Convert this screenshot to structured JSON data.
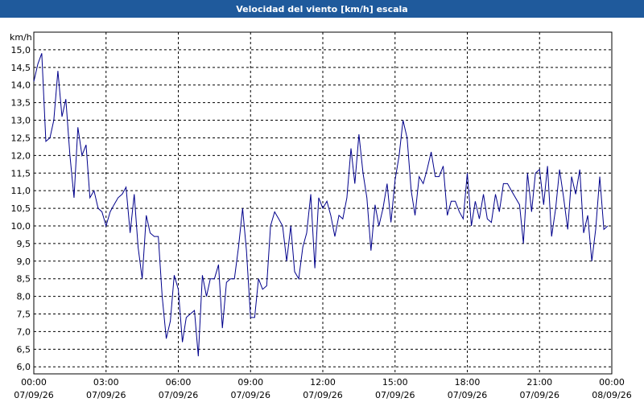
{
  "chart_data": {
    "type": "line",
    "title": "Velocidad del viento [km/h] escala",
    "y_label": "km/h",
    "x": [
      0,
      0.17,
      0.33,
      0.5,
      0.67,
      0.83,
      1,
      1.17,
      1.33,
      1.5,
      1.67,
      1.83,
      2,
      2.17,
      2.33,
      2.5,
      2.67,
      2.83,
      3,
      3.17,
      3.33,
      3.5,
      3.67,
      3.83,
      4,
      4.17,
      4.33,
      4.5,
      4.67,
      4.83,
      5,
      5.17,
      5.33,
      5.5,
      5.67,
      5.83,
      6,
      6.17,
      6.33,
      6.5,
      6.67,
      6.83,
      7,
      7.17,
      7.33,
      7.5,
      7.67,
      7.83,
      8,
      8.17,
      8.33,
      8.5,
      8.67,
      8.83,
      9,
      9.17,
      9.33,
      9.5,
      9.67,
      9.83,
      10,
      10.17,
      10.33,
      10.5,
      10.67,
      10.83,
      11,
      11.17,
      11.33,
      11.5,
      11.67,
      11.83,
      12,
      12.17,
      12.33,
      12.5,
      12.67,
      12.83,
      13,
      13.17,
      13.33,
      13.5,
      13.67,
      13.83,
      14,
      14.17,
      14.33,
      14.5,
      14.67,
      14.83,
      15,
      15.17,
      15.33,
      15.5,
      15.67,
      15.83,
      16,
      16.17,
      16.33,
      16.5,
      16.67,
      16.83,
      17,
      17.17,
      17.33,
      17.5,
      17.67,
      17.83,
      18,
      18.17,
      18.33,
      18.5,
      18.67,
      18.83,
      19,
      19.17,
      19.33,
      19.5,
      19.67,
      19.83,
      20,
      20.17,
      20.33,
      20.5,
      20.67,
      20.83,
      21,
      21.17,
      21.33,
      21.5,
      21.67,
      21.83,
      22,
      22.17,
      22.33,
      22.5,
      22.67,
      22.83,
      23,
      23.17,
      23.33,
      23.5,
      23.67,
      23.83
    ],
    "series": [
      {
        "name": "Velocidad del viento",
        "color": "#00008b",
        "values": [
          14.1,
          14.6,
          14.9,
          12.4,
          12.5,
          13.0,
          14.4,
          13.1,
          13.6,
          12.0,
          10.8,
          12.8,
          12.0,
          12.3,
          10.8,
          11.0,
          10.5,
          10.4,
          10.0,
          10.4,
          10.6,
          10.8,
          10.9,
          11.1,
          9.8,
          10.9,
          9.4,
          8.5,
          10.3,
          9.8,
          9.7,
          9.7,
          8.0,
          6.8,
          7.3,
          8.6,
          8.2,
          6.7,
          7.4,
          7.5,
          7.6,
          6.3,
          8.6,
          8.0,
          8.5,
          8.5,
          8.9,
          7.1,
          8.4,
          8.5,
          8.5,
          9.4,
          10.5,
          9.3,
          7.4,
          7.4,
          8.5,
          8.2,
          8.3,
          10.0,
          10.4,
          10.2,
          10.0,
          9.0,
          10.0,
          8.7,
          8.5,
          9.4,
          9.8,
          10.9,
          8.8,
          10.8,
          10.5,
          10.7,
          10.3,
          9.7,
          10.3,
          10.2,
          10.8,
          12.2,
          11.2,
          12.6,
          11.5,
          10.8,
          9.3,
          10.6,
          10.0,
          10.5,
          11.2,
          10.1,
          11.3,
          12.0,
          13.0,
          12.5,
          11.0,
          10.3,
          11.4,
          11.2,
          11.6,
          12.1,
          11.4,
          11.4,
          11.7,
          10.3,
          10.7,
          10.7,
          10.4,
          10.2,
          11.5,
          10.0,
          10.7,
          10.2,
          10.9,
          10.2,
          10.1,
          10.9,
          10.4,
          11.2,
          11.2,
          11.0,
          10.8,
          10.6,
          9.5,
          11.5,
          10.4,
          11.5,
          11.6,
          10.6,
          11.7,
          9.7,
          10.5,
          11.6,
          10.8,
          9.9,
          11.4,
          10.9,
          11.6,
          9.8,
          10.3,
          9.0,
          9.9,
          11.4,
          9.9,
          10.0
        ]
      }
    ],
    "xlim": [
      0,
      24
    ],
    "xticks": [
      {
        "value": 0,
        "label": "00:00",
        "date": "07/09/26"
      },
      {
        "value": 3,
        "label": "03:00",
        "date": "07/09/26"
      },
      {
        "value": 6,
        "label": "06:00",
        "date": "07/09/26"
      },
      {
        "value": 9,
        "label": "09:00",
        "date": "07/09/26"
      },
      {
        "value": 12,
        "label": "12:00",
        "date": "07/09/26"
      },
      {
        "value": 15,
        "label": "15:00",
        "date": "07/09/26"
      },
      {
        "value": 18,
        "label": "18:00",
        "date": "07/09/26"
      },
      {
        "value": 21,
        "label": "21:00",
        "date": "07/09/26"
      },
      {
        "value": 24,
        "label": "00:00",
        "date": "08/09/26"
      }
    ],
    "ylim": [
      5.8,
      15.5
    ],
    "yticks": [
      {
        "value": 6,
        "label": "6,0"
      },
      {
        "value": 6.5,
        "label": "6,5"
      },
      {
        "value": 7,
        "label": "7,0"
      },
      {
        "value": 7.5,
        "label": "7,5"
      },
      {
        "value": 8,
        "label": "8,0"
      },
      {
        "value": 8.5,
        "label": "8,5"
      },
      {
        "value": 9,
        "label": "9,0"
      },
      {
        "value": 9.5,
        "label": "9,5"
      },
      {
        "value": 10,
        "label": "10,0"
      },
      {
        "value": 10.5,
        "label": "10,5"
      },
      {
        "value": 11,
        "label": "11,0"
      },
      {
        "value": 11.5,
        "label": "11,5"
      },
      {
        "value": 12,
        "label": "12,0"
      },
      {
        "value": 12.5,
        "label": "12,5"
      },
      {
        "value": 13,
        "label": "13,0"
      },
      {
        "value": 13.5,
        "label": "13,5"
      },
      {
        "value": 14,
        "label": "14,0"
      },
      {
        "value": 14.5,
        "label": "14,5"
      },
      {
        "value": 15,
        "label": "15,0"
      }
    ],
    "grid": true
  }
}
